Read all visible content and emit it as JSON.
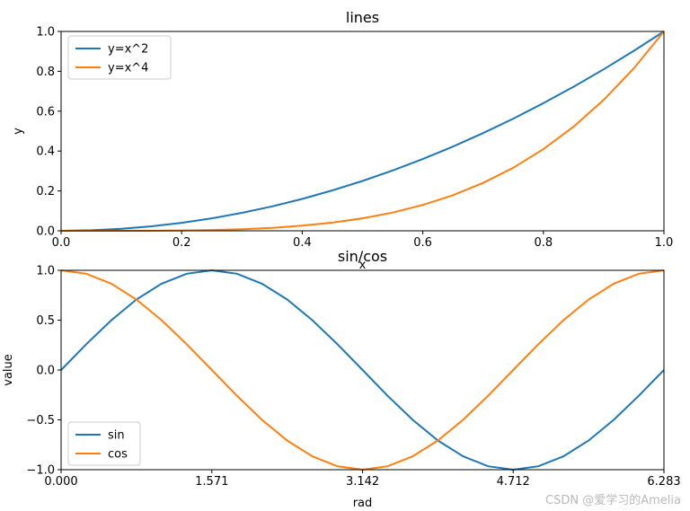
{
  "chart_data": [
    {
      "type": "line",
      "title": "lines",
      "xlabel": "x",
      "ylabel": "y",
      "xlim": [
        0,
        1
      ],
      "ylim": [
        0,
        1
      ],
      "xticks": [
        "0.0",
        "0.2",
        "0.4",
        "0.6",
        "0.8",
        "1.0"
      ],
      "yticks": [
        "0.0",
        "0.2",
        "0.4",
        "0.6",
        "0.8",
        "1.0"
      ],
      "legend": "top-left",
      "x": [
        0.0,
        0.05,
        0.1,
        0.15,
        0.2,
        0.25,
        0.3,
        0.35,
        0.4,
        0.45,
        0.5,
        0.55,
        0.6,
        0.65,
        0.7,
        0.75,
        0.8,
        0.85,
        0.9,
        0.95,
        1.0
      ],
      "series": [
        {
          "name": "y=x^2",
          "color": "#1f77b4",
          "values": [
            0.0,
            0.0025,
            0.01,
            0.0225,
            0.04,
            0.0625,
            0.09,
            0.1225,
            0.16,
            0.2025,
            0.25,
            0.3025,
            0.36,
            0.4225,
            0.49,
            0.5625,
            0.64,
            0.7225,
            0.81,
            0.9025,
            1.0
          ]
        },
        {
          "name": "y=x^4",
          "color": "#ff7f0e",
          "values": [
            0.0,
            0.0,
            0.0001,
            0.0005,
            0.0016,
            0.0039,
            0.0081,
            0.015,
            0.0256,
            0.041,
            0.0625,
            0.0915,
            0.1296,
            0.1785,
            0.2401,
            0.3164,
            0.4096,
            0.522,
            0.6561,
            0.8145,
            1.0
          ]
        }
      ]
    },
    {
      "type": "line",
      "title": "sin/cos",
      "xlabel": "rad",
      "ylabel": "value",
      "xlim": [
        0,
        6.283
      ],
      "ylim": [
        -1,
        1
      ],
      "xtick_values": [
        0,
        1.571,
        3.142,
        4.712,
        6.283
      ],
      "xticks": [
        "0.000",
        "1.571",
        "3.142",
        "4.712",
        "6.283"
      ],
      "ytick_values": [
        -1,
        -0.5,
        0,
        0.5,
        1
      ],
      "yticks": [
        "−1.0",
        "−0.5",
        "0.0",
        "0.5",
        "1.0"
      ],
      "legend": "bottom-left",
      "x": [
        0.0,
        0.262,
        0.524,
        0.785,
        1.047,
        1.309,
        1.571,
        1.833,
        2.094,
        2.356,
        2.618,
        2.88,
        3.142,
        3.403,
        3.665,
        3.927,
        4.189,
        4.451,
        4.712,
        4.974,
        5.236,
        5.498,
        5.76,
        6.021,
        6.283
      ],
      "series": [
        {
          "name": "sin",
          "color": "#1f77b4",
          "values": [
            0.0,
            0.259,
            0.5,
            0.707,
            0.866,
            0.966,
            1.0,
            0.966,
            0.866,
            0.707,
            0.5,
            0.259,
            0.0,
            -0.259,
            -0.5,
            -0.707,
            -0.866,
            -0.966,
            -1.0,
            -0.966,
            -0.866,
            -0.707,
            -0.5,
            -0.259,
            0.0
          ]
        },
        {
          "name": "cos",
          "color": "#ff7f0e",
          "values": [
            1.0,
            0.966,
            0.866,
            0.707,
            0.5,
            0.259,
            0.0,
            -0.259,
            -0.5,
            -0.707,
            -0.866,
            -0.966,
            -1.0,
            -0.966,
            -0.866,
            -0.707,
            -0.5,
            -0.259,
            0.0,
            0.259,
            0.5,
            0.707,
            0.866,
            0.966,
            1.0
          ]
        }
      ]
    }
  ],
  "watermark": "CSDN @爱学习的Amelia"
}
